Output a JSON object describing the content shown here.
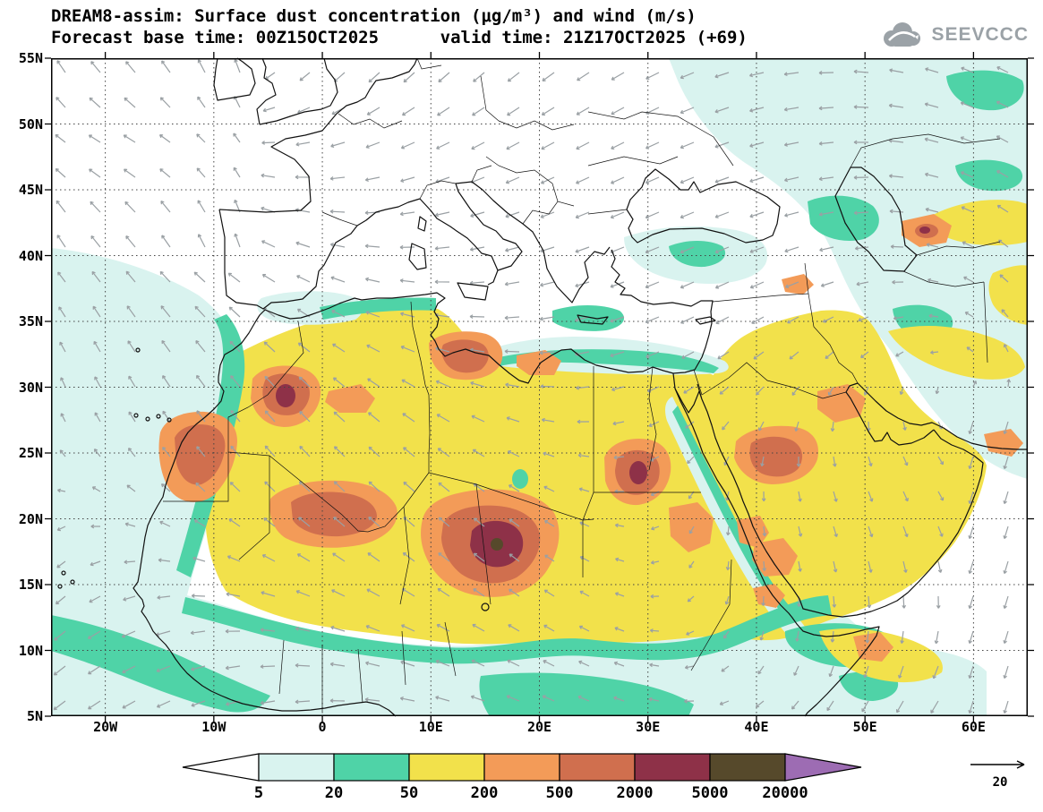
{
  "header": {
    "title": "DREAM8-assim: Surface dust concentration (μg/m³) and wind (m/s)",
    "subtitle": "Forecast base time: 00Z15OCT2025      valid time: 21Z17OCT2025 (+69)",
    "logo_text": "SEEVCCC"
  },
  "map": {
    "lat_ticks": [
      {
        "label": "55N",
        "lat": 55
      },
      {
        "label": "50N",
        "lat": 50
      },
      {
        "label": "45N",
        "lat": 45
      },
      {
        "label": "40N",
        "lat": 40
      },
      {
        "label": "35N",
        "lat": 35
      },
      {
        "label": "30N",
        "lat": 30
      },
      {
        "label": "25N",
        "lat": 25
      },
      {
        "label": "20N",
        "lat": 20
      },
      {
        "label": "15N",
        "lat": 15
      },
      {
        "label": "10N",
        "lat": 10
      },
      {
        "label": "5N",
        "lat": 5
      }
    ],
    "lon_ticks": [
      {
        "label": "20W",
        "lon": -20
      },
      {
        "label": "10W",
        "lon": -10
      },
      {
        "label": "0",
        "lon": 0
      },
      {
        "label": "10E",
        "lon": 10
      },
      {
        "label": "20E",
        "lon": 20
      },
      {
        "label": "30E",
        "lon": 30
      },
      {
        "label": "40E",
        "lon": 40
      },
      {
        "label": "50E",
        "lon": 50
      },
      {
        "label": "60E",
        "lon": 60
      }
    ]
  },
  "palette": {
    "level_5_20": "#d9f3ef",
    "level_20_50": "#4fd3a7",
    "level_50_200": "#f2e14b",
    "level_200_500": "#f39b58",
    "level_500_2000": "#d06f4e",
    "level_2000_5000": "#8e3148",
    "level_5000_20000": "#56492b",
    "level_gt_20000": "#9d6cb3"
  },
  "colorbar": {
    "labels": [
      "5",
      "20",
      "50",
      "200",
      "500",
      "2000",
      "5000",
      "20000"
    ],
    "segments": [
      {
        "name": "below-5",
        "color": "#ffffff",
        "shape": "left-triangle"
      },
      {
        "name": "5-20",
        "color": "#d9f3ef"
      },
      {
        "name": "20-50",
        "color": "#4fd3a7"
      },
      {
        "name": "50-200",
        "color": "#f2e14b"
      },
      {
        "name": "200-500",
        "color": "#f39b58"
      },
      {
        "name": "500-2000",
        "color": "#d06f4e"
      },
      {
        "name": "2000-5000",
        "color": "#8e3148"
      },
      {
        "name": "5000-20000",
        "color": "#56492b"
      },
      {
        "name": "above-20000",
        "color": "#9d6cb3",
        "shape": "right-triangle"
      }
    ]
  },
  "wind_reference": {
    "label": "20"
  },
  "chart_data": {
    "type": "heatmap",
    "subtype": "filled-contour-map-with-wind-vectors",
    "title": "DREAM8-assim: Surface dust concentration (μg/m³) and wind (m/s)",
    "model": "DREAM8-assim",
    "variable": "Surface dust concentration",
    "units": "μg/m³",
    "wind_units": "m/s",
    "forecast_base_time": "00Z15OCT2025",
    "valid_time": "21Z17OCT2025",
    "lead_time_hours": 69,
    "lat_tick_range": [
      "5N",
      "55N"
    ],
    "lon_tick_range": [
      "20W",
      "60E"
    ],
    "contour_levels_ug_m3": [
      5,
      20,
      50,
      200,
      500,
      2000,
      5000,
      20000
    ],
    "level_colors": [
      "#ffffff",
      "#d9f3ef",
      "#4fd3a7",
      "#f2e14b",
      "#f39b58",
      "#d06f4e",
      "#8e3148",
      "#56492b",
      "#9d6cb3"
    ],
    "wind_reference_vector_ms": 20,
    "grid": "dotted, 5deg lat x 10deg lon",
    "legend_position": "bottom"
  }
}
